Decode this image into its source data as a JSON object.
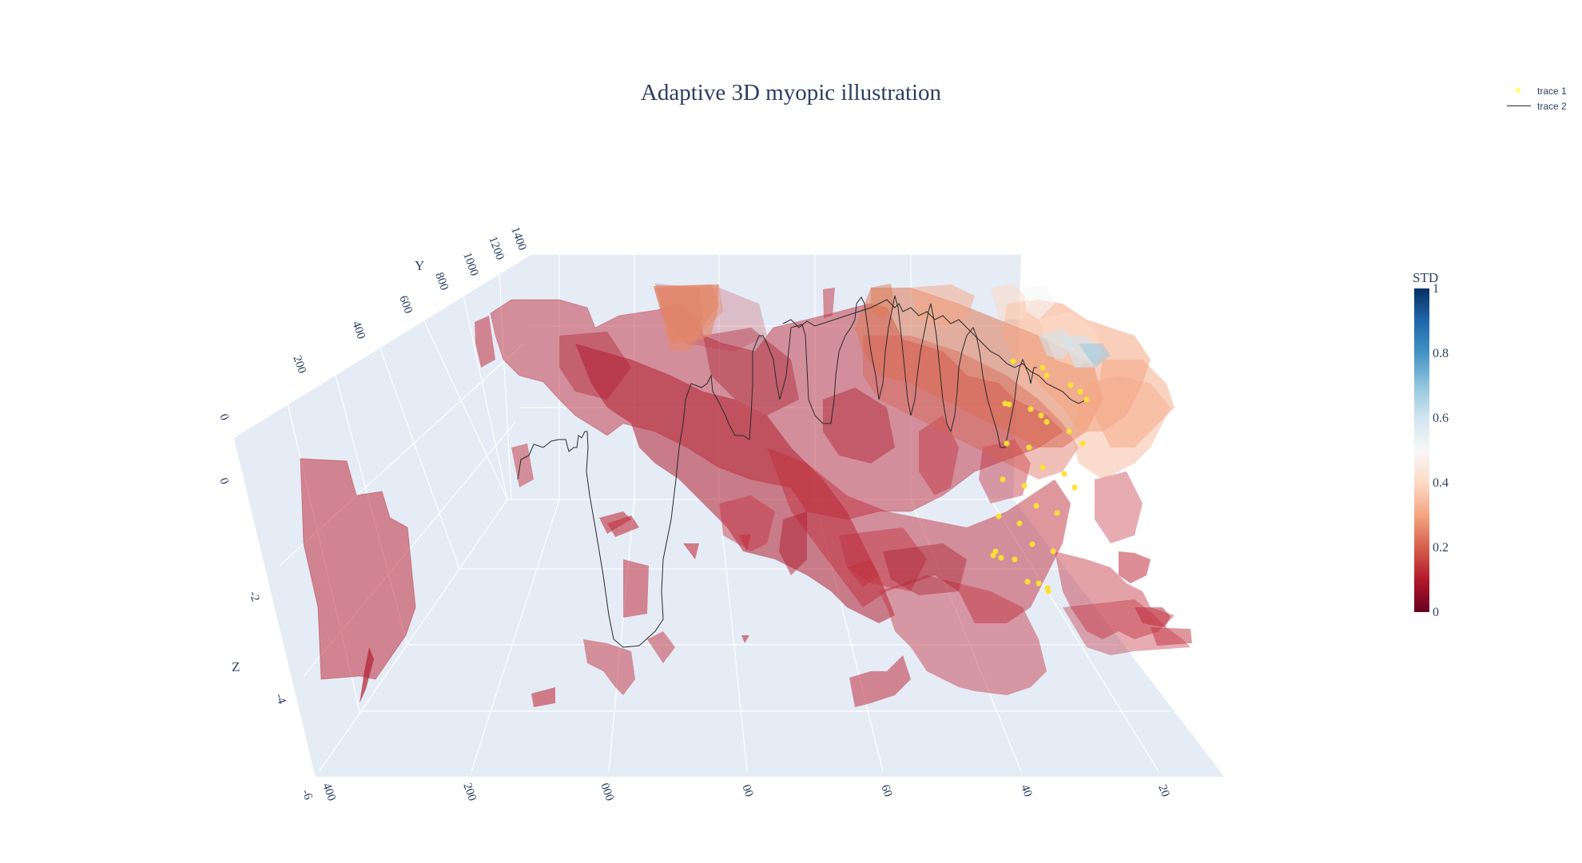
{
  "chart_data": {
    "type": "3d-isosurface",
    "title": "Adaptive 3D myopic illustration",
    "axes": {
      "x": {
        "title": "",
        "tick_labels": [
          "-6",
          "400",
          "200",
          "000",
          "00",
          "60",
          "40",
          "20"
        ]
      },
      "y": {
        "title": "Y",
        "tick_labels": [
          "0",
          "200",
          "400",
          "600",
          "800",
          "1000",
          "1200",
          "1400"
        ]
      },
      "z": {
        "title": "Z",
        "tick_labels": [
          "0",
          "-2",
          "-4"
        ]
      }
    },
    "colorbar": {
      "title": "STD",
      "tick_labels": [
        "1",
        "0.8",
        "0.6",
        "0.4",
        "0.2",
        "0"
      ],
      "range": [
        0,
        1
      ],
      "colorscale": [
        "#67001f",
        "#b2182b",
        "#d6604d",
        "#f4a582",
        "#fddbc7",
        "#f7f7f7",
        "#d1e5f0",
        "#92c5de",
        "#4393c3",
        "#2166ac",
        "#053061"
      ]
    },
    "legend": [
      {
        "name": "trace 1",
        "kind": "markers",
        "color": "#ffff33"
      },
      {
        "name": "trace 2",
        "kind": "lines",
        "color": "#2a2a2a"
      }
    ],
    "surface_color": "#c0303e",
    "scene_background": "#e5ecf6"
  }
}
